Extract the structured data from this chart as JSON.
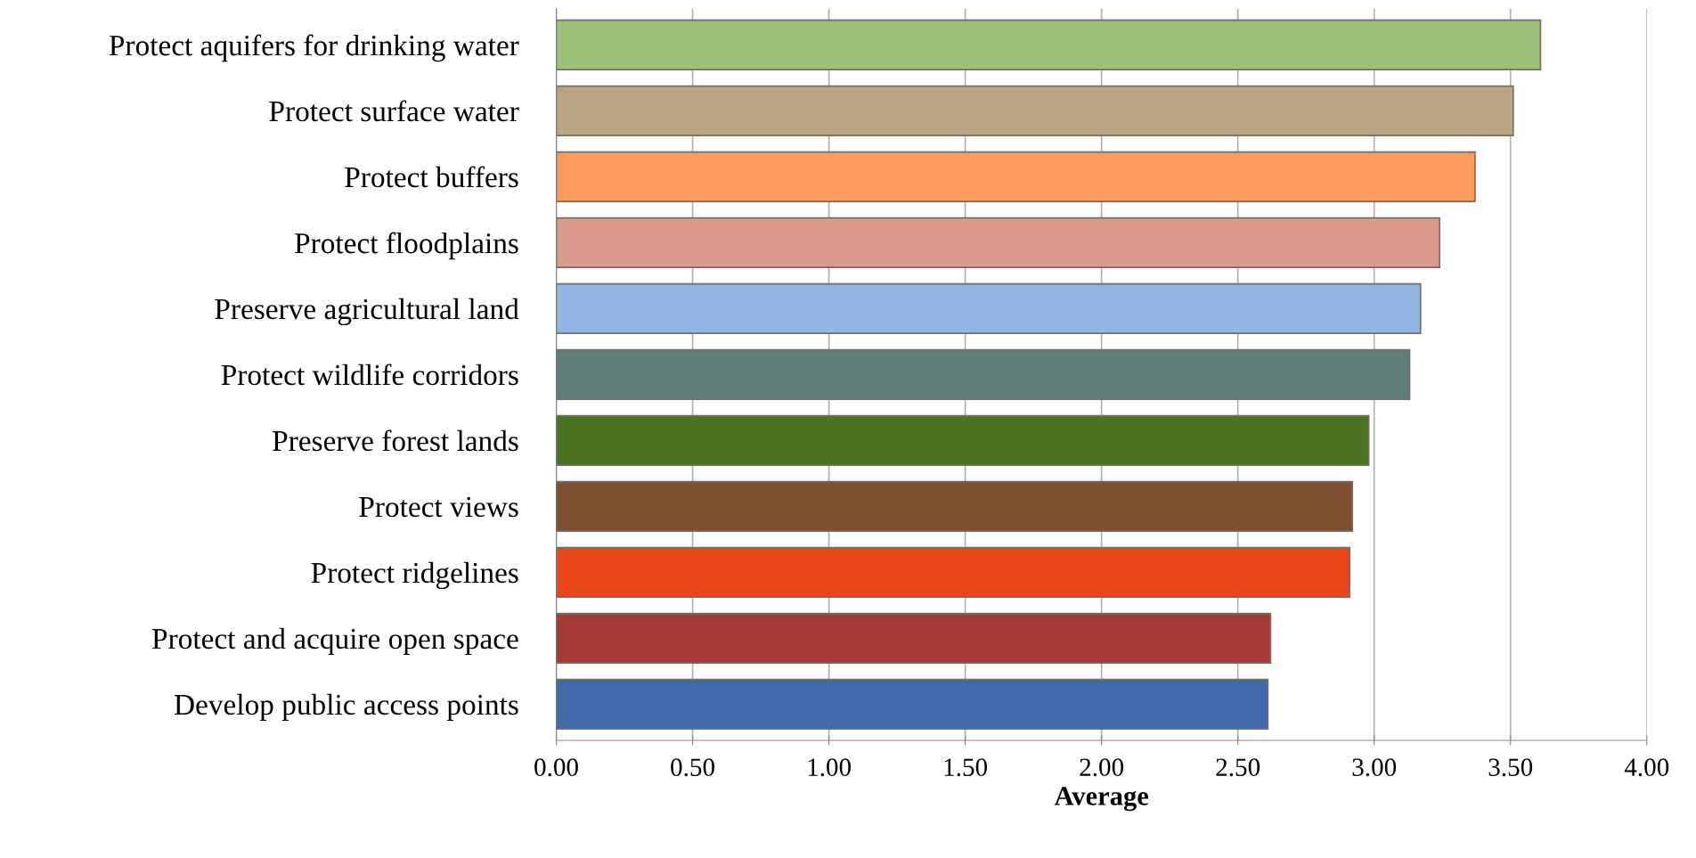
{
  "chart_data": {
    "type": "bar",
    "orientation": "horizontal",
    "xlabel": "Average",
    "categories": [
      "Protect aquifers for drinking water",
      "Protect surface water",
      "Protect buffers",
      "Protect floodplains",
      "Preserve agricultural land",
      "Protect wildlife corridors",
      "Preserve forest lands",
      "Protect views",
      "Protect ridgelines",
      "Protect and acquire open space",
      "Develop public access points"
    ],
    "values": [
      3.61,
      3.51,
      3.37,
      3.24,
      3.17,
      3.13,
      2.98,
      2.92,
      2.91,
      2.62,
      2.61
    ],
    "colors": [
      "#9dc17a",
      "#bba482",
      "#fd9a5c",
      "#d99a8a",
      "#92b5e4",
      "#5f7e7a",
      "#4b7420",
      "#7f4f2f",
      "#e9461a",
      "#a53b34",
      "#3f69a9"
    ],
    "xlim": [
      0,
      4
    ],
    "xticks": [
      {
        "value": 0,
        "label": "0.00"
      },
      {
        "value": 0.5,
        "label": "0.50"
      },
      {
        "value": 1,
        "label": "1.00"
      },
      {
        "value": 1.5,
        "label": "1.50"
      },
      {
        "value": 2,
        "label": "2.00"
      },
      {
        "value": 2.5,
        "label": "2.50"
      },
      {
        "value": 3,
        "label": "3.00"
      },
      {
        "value": 3.5,
        "label": "3.50"
      },
      {
        "value": 4,
        "label": "4.00"
      }
    ],
    "grid": "x"
  }
}
